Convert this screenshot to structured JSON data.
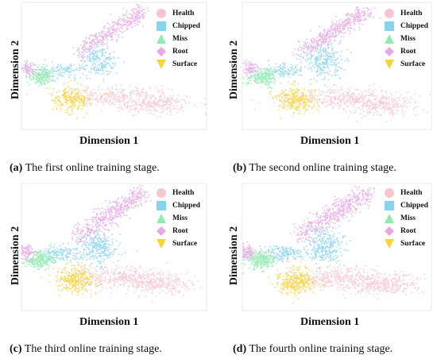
{
  "chart_data": [
    {
      "type": "scatter",
      "xlabel": "Dimension 1",
      "ylabel": "Dimension 2",
      "caption_label": "(a)",
      "caption_text": " The first online training stage.",
      "grid": false,
      "legend_position": "top-right",
      "series": [
        {
          "name": "Health",
          "color": "#f5c6cf",
          "marker": "circle",
          "clusters": [
            {
              "cx": 0.52,
              "cy": 0.26,
              "sx": 0.14,
              "sy": 0.04,
              "n": 320
            },
            {
              "cx": 0.72,
              "cy": 0.2,
              "sx": 0.1,
              "sy": 0.04,
              "n": 260
            }
          ]
        },
        {
          "name": "Chipped",
          "color": "#85d4ef",
          "marker": "square",
          "clusters": [
            {
              "cx": 0.42,
              "cy": 0.54,
              "sx": 0.05,
              "sy": 0.07,
              "n": 200
            },
            {
              "cx": 0.22,
              "cy": 0.46,
              "sx": 0.06,
              "sy": 0.03,
              "n": 110
            }
          ]
        },
        {
          "name": "Miss",
          "color": "#90ebb0",
          "marker": "triangle-up",
          "clusters": [
            {
              "cx": 0.11,
              "cy": 0.42,
              "sx": 0.035,
              "sy": 0.035,
              "n": 200
            }
          ]
        },
        {
          "name": "Root",
          "color": "#e7a8e4",
          "marker": "diamond",
          "clusters": [
            {
              "cx": 0.04,
              "cy": 0.48,
              "sx": 0.02,
              "sy": 0.03,
              "n": 70
            },
            {
              "line": [
                0.3,
                0.6,
                0.66,
                0.93
              ],
              "spread": 0.035,
              "n": 400
            }
          ]
        },
        {
          "name": "Surface",
          "color": "#f5d53c",
          "marker": "triangle-down",
          "clusters": [
            {
              "cx": 0.27,
              "cy": 0.24,
              "sx": 0.05,
              "sy": 0.05,
              "n": 240
            }
          ]
        }
      ]
    },
    {
      "type": "scatter",
      "xlabel": "Dimension 1",
      "ylabel": "Dimension 2",
      "caption_label": "(b)",
      "caption_text": " The second online training stage.",
      "grid": false,
      "legend_position": "top-right",
      "series": [
        {
          "name": "Health",
          "color": "#f5c6cf",
          "marker": "circle",
          "clusters": [
            {
              "cx": 0.52,
              "cy": 0.25,
              "sx": 0.14,
              "sy": 0.04,
              "n": 340
            },
            {
              "cx": 0.72,
              "cy": 0.19,
              "sx": 0.1,
              "sy": 0.04,
              "n": 280
            }
          ]
        },
        {
          "name": "Chipped",
          "color": "#85d4ef",
          "marker": "square",
          "clusters": [
            {
              "cx": 0.43,
              "cy": 0.54,
              "sx": 0.05,
              "sy": 0.07,
              "n": 260
            },
            {
              "cx": 0.22,
              "cy": 0.46,
              "sx": 0.06,
              "sy": 0.03,
              "n": 130
            }
          ]
        },
        {
          "name": "Miss",
          "color": "#90ebb0",
          "marker": "triangle-up",
          "clusters": [
            {
              "cx": 0.11,
              "cy": 0.41,
              "sx": 0.04,
              "sy": 0.035,
              "n": 240
            }
          ]
        },
        {
          "name": "Root",
          "color": "#e7a8e4",
          "marker": "diamond",
          "clusters": [
            {
              "cx": 0.04,
              "cy": 0.48,
              "sx": 0.02,
              "sy": 0.03,
              "n": 80
            },
            {
              "line": [
                0.3,
                0.6,
                0.66,
                0.93
              ],
              "spread": 0.035,
              "n": 460
            }
          ]
        },
        {
          "name": "Surface",
          "color": "#f5d53c",
          "marker": "triangle-down",
          "clusters": [
            {
              "cx": 0.28,
              "cy": 0.23,
              "sx": 0.05,
              "sy": 0.05,
              "n": 280
            }
          ]
        }
      ]
    },
    {
      "type": "scatter",
      "xlabel": "Dimension 1",
      "ylabel": "Dimension 2",
      "caption_label": "(c)",
      "caption_text": " The third online training stage.",
      "grid": false,
      "legend_position": "top-right",
      "series": [
        {
          "name": "Health",
          "color": "#f5c6cf",
          "marker": "circle",
          "clusters": [
            {
              "cx": 0.52,
              "cy": 0.26,
              "sx": 0.14,
              "sy": 0.045,
              "n": 360
            },
            {
              "cx": 0.72,
              "cy": 0.21,
              "sx": 0.1,
              "sy": 0.04,
              "n": 300
            }
          ]
        },
        {
          "name": "Chipped",
          "color": "#85d4ef",
          "marker": "square",
          "clusters": [
            {
              "cx": 0.42,
              "cy": 0.5,
              "sx": 0.05,
              "sy": 0.07,
              "n": 280
            },
            {
              "cx": 0.21,
              "cy": 0.45,
              "sx": 0.06,
              "sy": 0.03,
              "n": 150
            }
          ]
        },
        {
          "name": "Miss",
          "color": "#90ebb0",
          "marker": "triangle-up",
          "clusters": [
            {
              "cx": 0.1,
              "cy": 0.4,
              "sx": 0.04,
              "sy": 0.035,
              "n": 260
            }
          ]
        },
        {
          "name": "Root",
          "color": "#e7a8e4",
          "marker": "diamond",
          "clusters": [
            {
              "cx": 0.03,
              "cy": 0.46,
              "sx": 0.02,
              "sy": 0.03,
              "n": 90
            },
            {
              "line": [
                0.3,
                0.58,
                0.66,
                0.93
              ],
              "spread": 0.04,
              "n": 500
            }
          ]
        },
        {
          "name": "Surface",
          "color": "#f5d53c",
          "marker": "triangle-down",
          "clusters": [
            {
              "cx": 0.29,
              "cy": 0.24,
              "sx": 0.05,
              "sy": 0.05,
              "n": 300
            }
          ]
        }
      ]
    },
    {
      "type": "scatter",
      "xlabel": "Dimension 1",
      "ylabel": "Dimension 2",
      "caption_label": "(d)",
      "caption_text": " The fourth online training stage.",
      "grid": false,
      "legend_position": "top-right",
      "series": [
        {
          "name": "Health",
          "color": "#f5c6cf",
          "marker": "circle",
          "clusters": [
            {
              "cx": 0.53,
              "cy": 0.25,
              "sx": 0.14,
              "sy": 0.045,
              "n": 380
            },
            {
              "cx": 0.73,
              "cy": 0.2,
              "sx": 0.1,
              "sy": 0.04,
              "n": 320
            }
          ]
        },
        {
          "name": "Chipped",
          "color": "#85d4ef",
          "marker": "square",
          "clusters": [
            {
              "cx": 0.43,
              "cy": 0.5,
              "sx": 0.05,
              "sy": 0.07,
              "n": 300
            },
            {
              "cx": 0.22,
              "cy": 0.45,
              "sx": 0.06,
              "sy": 0.03,
              "n": 160
            }
          ]
        },
        {
          "name": "Miss",
          "color": "#90ebb0",
          "marker": "triangle-up",
          "clusters": [
            {
              "cx": 0.1,
              "cy": 0.4,
              "sx": 0.04,
              "sy": 0.035,
              "n": 280
            }
          ]
        },
        {
          "name": "Root",
          "color": "#e7a8e4",
          "marker": "diamond",
          "clusters": [
            {
              "cx": 0.03,
              "cy": 0.46,
              "sx": 0.02,
              "sy": 0.03,
              "n": 90
            },
            {
              "line": [
                0.3,
                0.58,
                0.66,
                0.93
              ],
              "spread": 0.04,
              "n": 520
            }
          ]
        },
        {
          "name": "Surface",
          "color": "#f5d53c",
          "marker": "triangle-down",
          "clusters": [
            {
              "cx": 0.29,
              "cy": 0.23,
              "sx": 0.05,
              "sy": 0.05,
              "n": 320
            }
          ]
        }
      ]
    }
  ]
}
